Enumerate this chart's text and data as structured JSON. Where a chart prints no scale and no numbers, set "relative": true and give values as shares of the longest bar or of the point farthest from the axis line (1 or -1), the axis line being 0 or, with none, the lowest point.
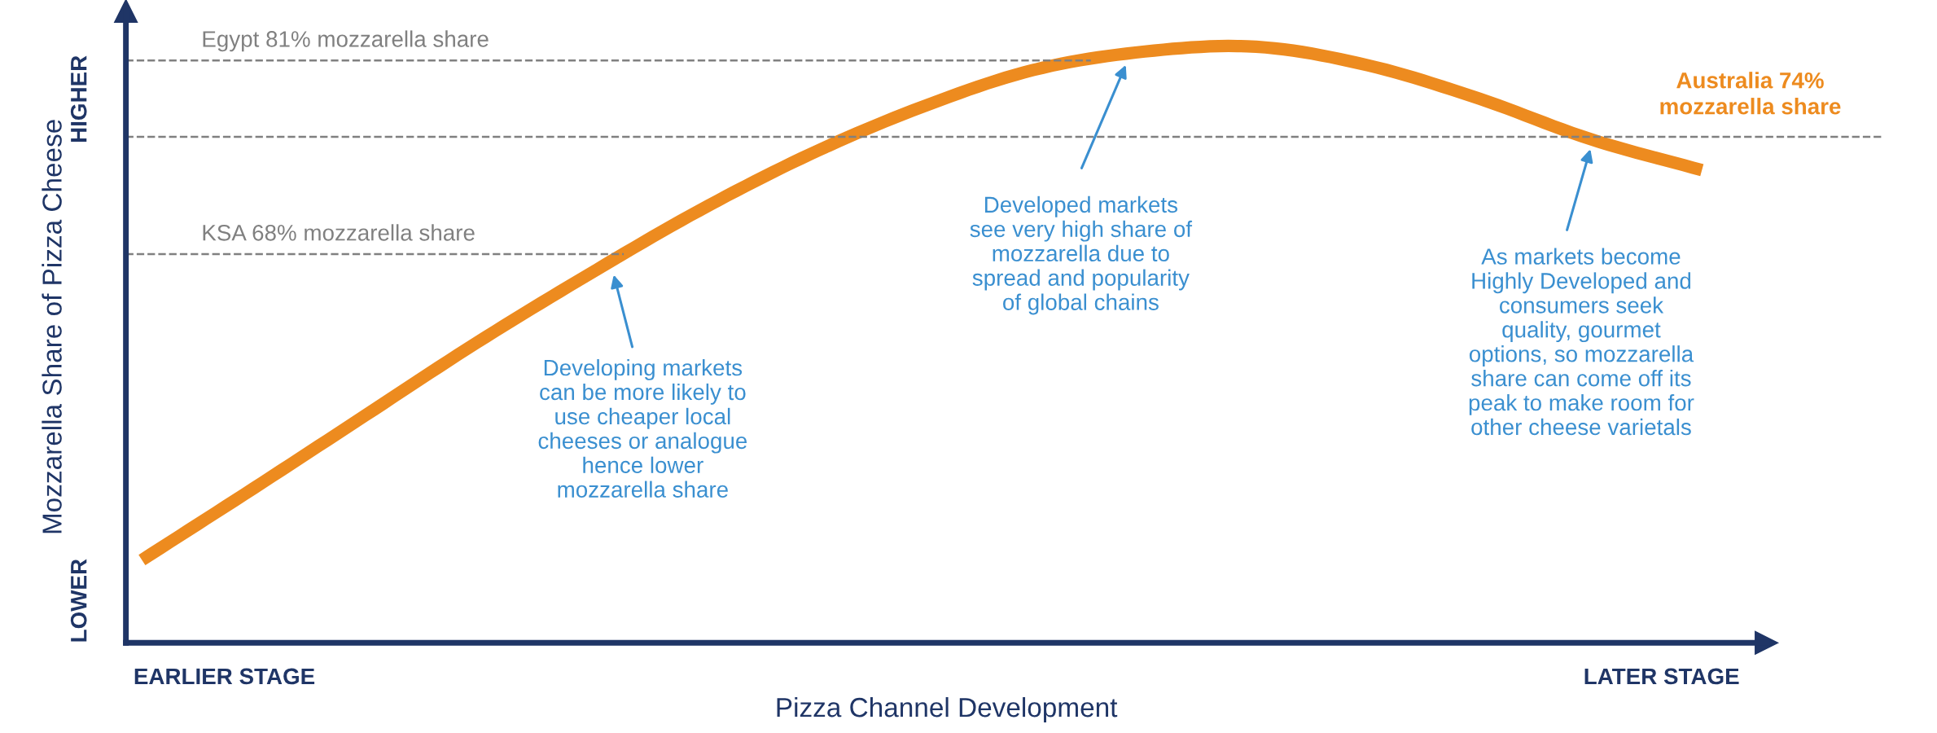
{
  "chart_data": {
    "type": "line",
    "relative": true,
    "xlabel": "Pizza Channel Development",
    "ylabel": "Mozzarella Share of Pizza Cheese",
    "categories": [
      null,
      null,
      null,
      null,
      null,
      null,
      null,
      null,
      null,
      null,
      null,
      null,
      null,
      null,
      null
    ],
    "series": [
      {
        "color": "#ed8b1f",
        "values": [
          0.139,
          0.259,
          0.381,
          0.503,
          0.617,
          0.725,
          0.82,
          0.899,
          0.961,
          0.992,
          1.0,
          0.969,
          0.913,
          0.845,
          0.793
        ]
      }
    ],
    "ref_lines": [
      {
        "axis": "y",
        "value": 0.977,
        "label": "Egypt 81% mozzarella share",
        "color": "#808080",
        "line_style": "dashed"
      },
      {
        "axis": "y",
        "value": 0.849,
        "label": "Australia 74%\nmozzarella share",
        "color": "#808080",
        "line_style": "dashed"
      },
      {
        "axis": "y",
        "value": 0.652,
        "label": "KSA 68% mozzarella share",
        "color": "#808080",
        "line_style": "dashed"
      }
    ],
    "annotations": [
      "HIGHER",
      "LOWER",
      "EARLIER STAGE",
      "LATER STAGE",
      "Developing markets\ncan be more likely to\nuse cheaper local\ncheeses or analogue\nhence lower\nmozzarella share",
      "Developed markets\nsee very high share of\nmozzarella due to\nspread and popularity\nof global chains",
      "As markets become\nHighly Developed and\nconsumers seek\nquality, gourmet\noptions, so mozzarella\nshare can come off its\npeak to make room for\nother cheese varietals"
    ],
    "legend": false,
    "marker": "none",
    "line_style": "solid"
  }
}
